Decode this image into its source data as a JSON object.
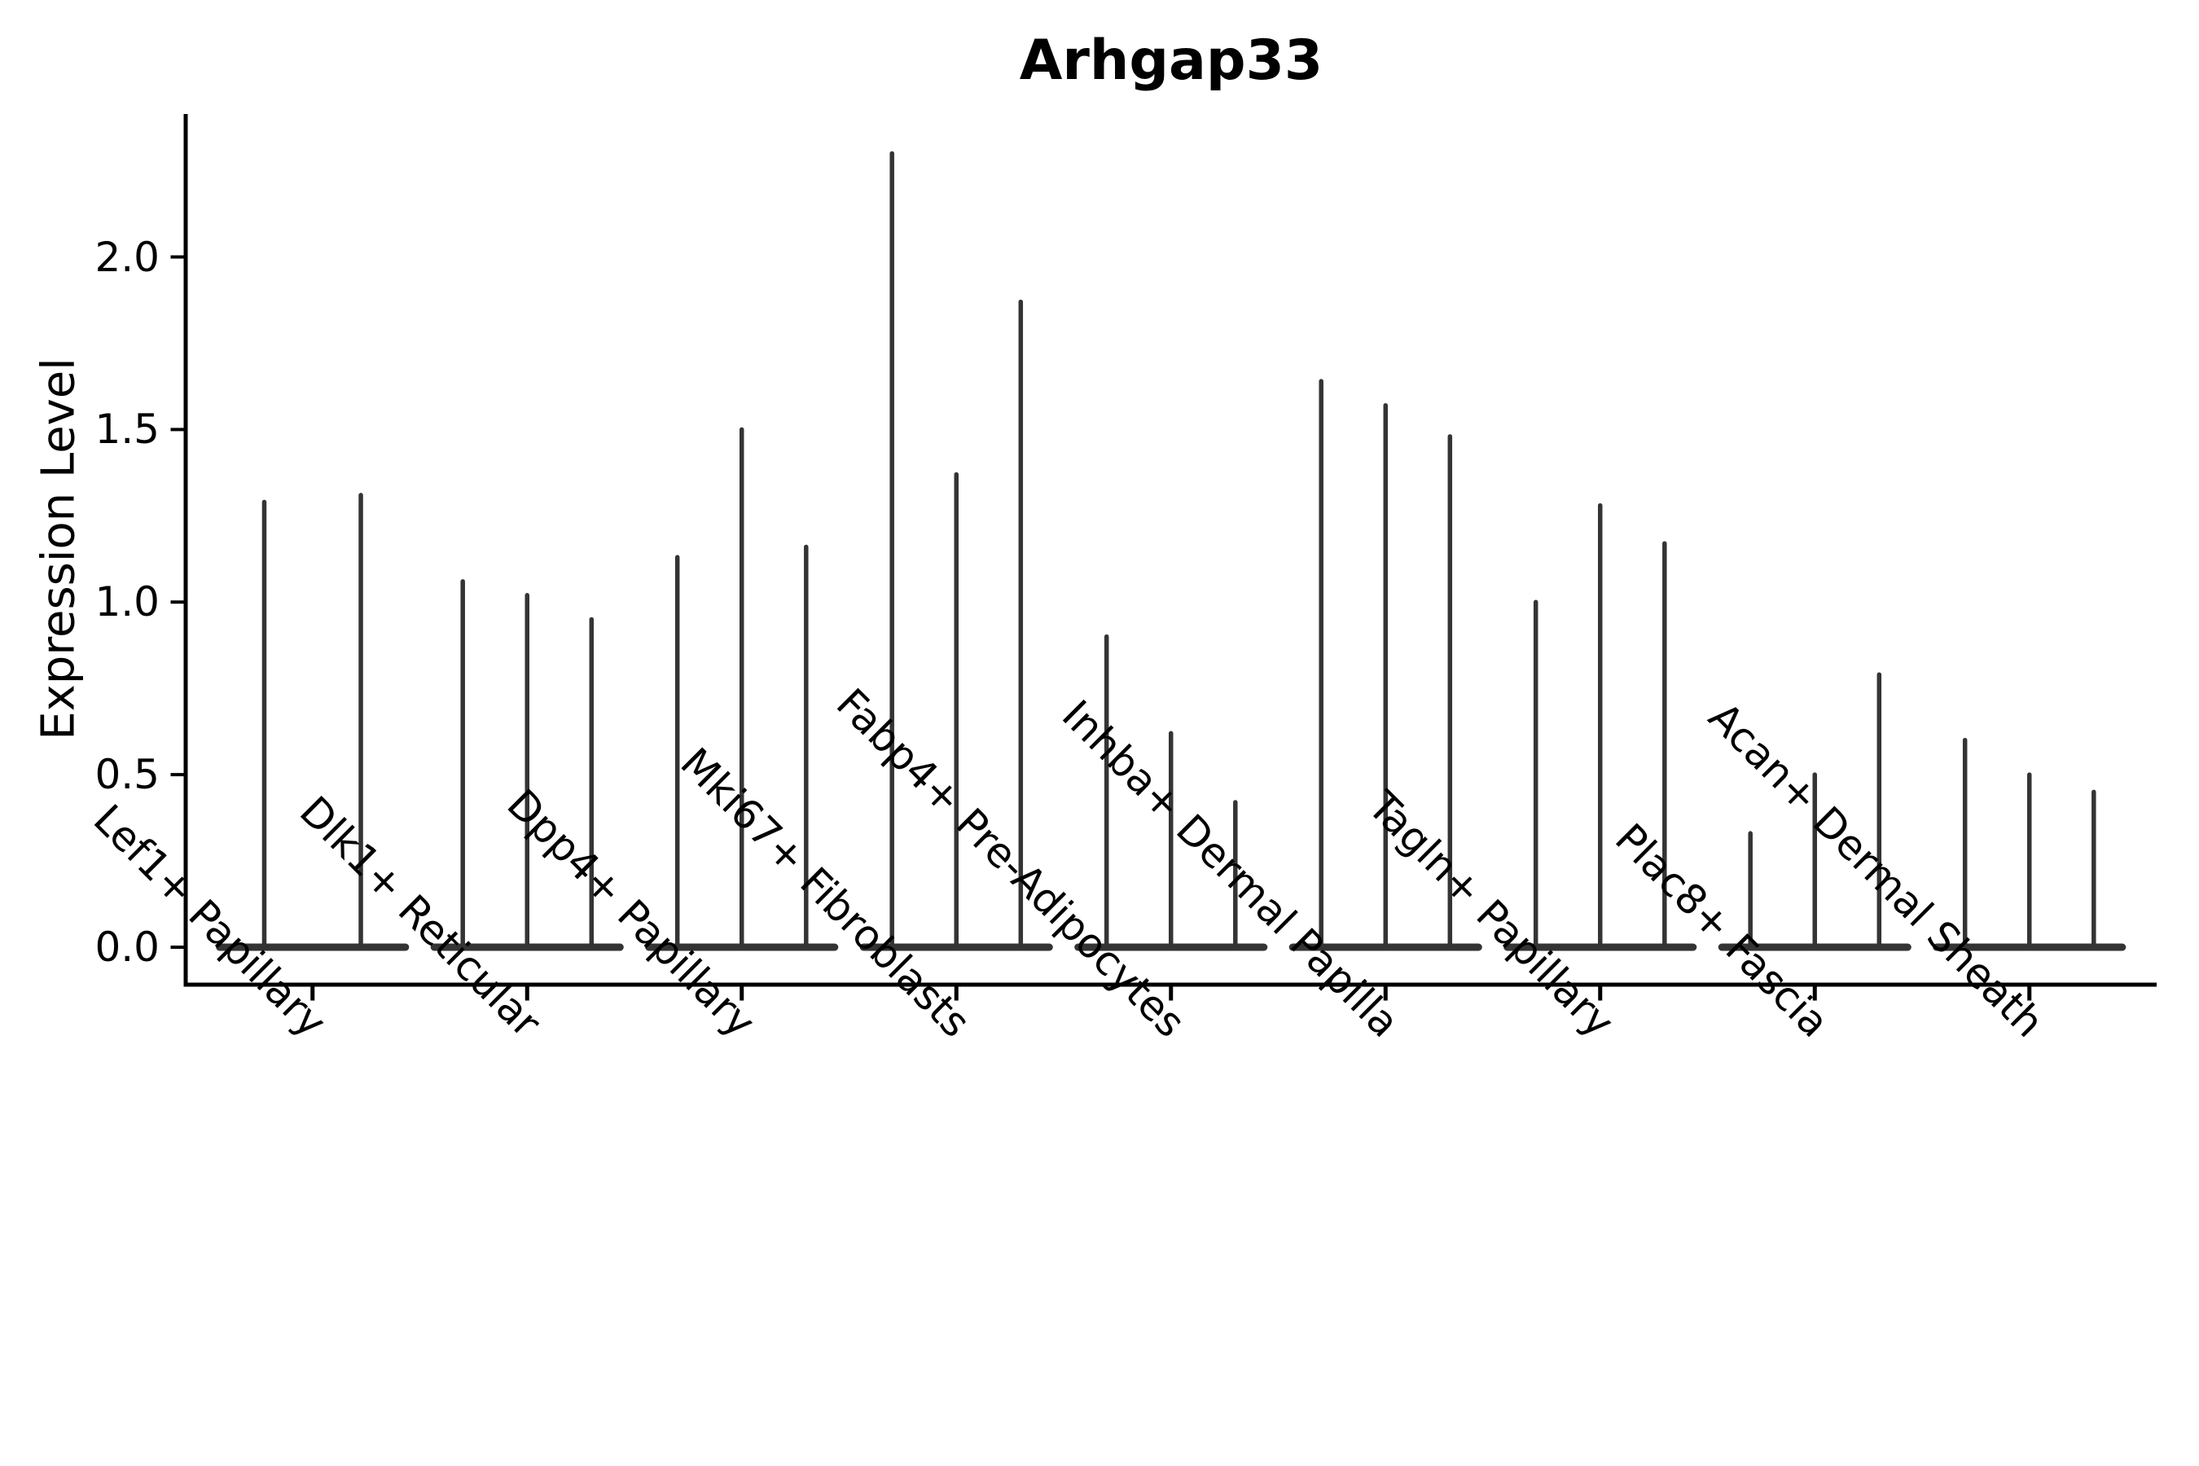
{
  "title": "Arhgap33",
  "axes": {
    "ylabel": "Expression Level",
    "yticks": [
      "0.0",
      "0.5",
      "1.0",
      "1.5",
      "2.0"
    ],
    "ytick_values": [
      0.0,
      0.5,
      1.0,
      1.5,
      2.0
    ]
  },
  "colors": {
    "violin": "#343434",
    "axis": "#000000",
    "text": "#000000",
    "background": "#ffffff"
  },
  "chart_data": {
    "type": "violin",
    "title": "Arhgap33",
    "xlabel": "",
    "ylabel": "Expression Level",
    "ylim": [
      0,
      2.41
    ],
    "grid": false,
    "legend": "none",
    "baseline_value": 0.0,
    "description": "Spike-shaped violins: wide flat density bar at expression 0 plus a thin spike reaching the maximum expression value; 2-3 violins (samples) per cell-type category, all same dark gray color",
    "categories": [
      "Lef1+ Papillary",
      "Dlk1+ Reticular",
      "Dpp4+ Papillary",
      "Mki67+ Fibroblasts",
      "Fabp4+ Pre-Adipocytes",
      "Inhba+ Dermal Papilla",
      "Tagln+ Papillary",
      "Plac8+ Fascia",
      "Acan+ Dermal Sheath"
    ],
    "violins_per_category": [
      2,
      3,
      3,
      3,
      3,
      3,
      3,
      3,
      3
    ],
    "series_max_values": [
      [
        1.29,
        1.31
      ],
      [
        1.06,
        1.02,
        0.95
      ],
      [
        1.13,
        1.5,
        1.16
      ],
      [
        2.3,
        1.37,
        1.87
      ],
      [
        0.9,
        0.62,
        0.42
      ],
      [
        1.64,
        1.57,
        1.48
      ],
      [
        1.0,
        1.28,
        1.17
      ],
      [
        0.33,
        0.5,
        0.79
      ],
      [
        0.6,
        0.5,
        0.45
      ]
    ]
  }
}
